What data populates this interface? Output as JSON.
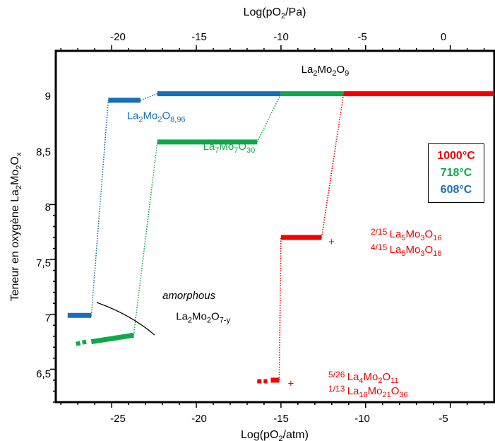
{
  "chart_data": {
    "type": "line",
    "xlabel_bottom": "Log(pO2/atm)",
    "xlabel_top": "Log(pO2/Pa)",
    "ylabel": "Teneur en oxygène La2Mo2Ox",
    "xlim": [
      -28.3,
      -2.4
    ],
    "ylim": [
      6.2,
      9.4
    ],
    "top_xlim": [
      -23.3,
      2.6
    ],
    "x_ticks": [
      "-25",
      "-20",
      "-15",
      "-10",
      "-5"
    ],
    "top_ticks": [
      "-20",
      "-15",
      "-10",
      "-5",
      "0"
    ],
    "y_ticks": [
      "6,5",
      "7",
      "7,5",
      "8",
      "8,5",
      "9"
    ],
    "legend": [
      {
        "label": "1000°C",
        "color": "#f20000"
      },
      {
        "label": "718°C",
        "color": "#12a84a"
      },
      {
        "label": "608°C",
        "color": "#1670b8"
      }
    ],
    "series": [
      {
        "name": "608°C",
        "color": "#1670b8",
        "segments": [
          {
            "x": [
              -27.6,
              -26.2
            ],
            "y": [
              6.99,
              6.99
            ],
            "style": "solid"
          },
          {
            "x": [
              -26.2,
              -25.2
            ],
            "y": [
              6.99,
              8.95
            ],
            "style": "dotted"
          },
          {
            "x": [
              -25.2,
              -23.3
            ],
            "y": [
              8.95,
              8.95
            ],
            "style": "solid"
          },
          {
            "x": [
              -23.3,
              -22.3
            ],
            "y": [
              8.95,
              9.01
            ],
            "style": "dotted"
          },
          {
            "x": [
              -22.3,
              -15.0
            ],
            "y": [
              9.01,
              9.01
            ],
            "style": "solid"
          }
        ]
      },
      {
        "name": "718°C",
        "color": "#12a84a",
        "segments": [
          {
            "x": [
              -27.1,
              -26.5
            ],
            "y": [
              6.73,
              6.75
            ],
            "style": "dashed"
          },
          {
            "x": [
              -26.2,
              -23.7
            ],
            "y": [
              6.75,
              6.81
            ],
            "style": "solid"
          },
          {
            "x": [
              -23.7,
              -22.3
            ],
            "y": [
              6.81,
              8.57
            ],
            "style": "dotted"
          },
          {
            "x": [
              -22.3,
              -16.4
            ],
            "y": [
              8.57,
              8.57
            ],
            "style": "solid"
          },
          {
            "x": [
              -16.4,
              -15.0
            ],
            "y": [
              8.57,
              9.01
            ],
            "style": "dotted"
          },
          {
            "x": [
              -15.0,
              -11.3
            ],
            "y": [
              9.01,
              9.01
            ],
            "style": "solid"
          }
        ]
      },
      {
        "name": "1000°C",
        "color": "#f20000",
        "segments": [
          {
            "x": [
              -16.4,
              -15.8
            ],
            "y": [
              6.39,
              6.39
            ],
            "style": "dashed"
          },
          {
            "x": [
              -15.6,
              -15.1
            ],
            "y": [
              6.4,
              6.4
            ],
            "style": "solid"
          },
          {
            "x": [
              -15.1,
              -15.0
            ],
            "y": [
              6.4,
              7.7
            ],
            "style": "dotted"
          },
          {
            "x": [
              -15.0,
              -12.6
            ],
            "y": [
              7.7,
              7.7
            ],
            "style": "solid"
          },
          {
            "x": [
              -12.6,
              -11.3
            ],
            "y": [
              7.7,
              9.01
            ],
            "style": "dotted"
          },
          {
            "x": [
              -11.3,
              -2.4
            ],
            "y": [
              9.01,
              9.01
            ],
            "style": "solid"
          }
        ]
      }
    ],
    "annotations": [
      {
        "id": "la2mo2o9",
        "text": "La2Mo2O9",
        "x": -13.8,
        "y": 9.2,
        "color": "#000000"
      },
      {
        "id": "la2mo2o896",
        "text": "La2Mo2O8,96",
        "x": -24.1,
        "y": 8.78,
        "color": "#1670b8"
      },
      {
        "id": "la7mo7o30",
        "text": "La7Mo7O30",
        "x": -19.6,
        "y": 8.5,
        "color": "#12a84a"
      },
      {
        "id": "amorphous",
        "text": "amorphous",
        "x": -22.0,
        "y": 7.14,
        "color": "#000000"
      },
      {
        "id": "la2mo2o7y",
        "text": "La2Mo2O7-y",
        "x": -21.2,
        "y": 6.95,
        "color": "#000000"
      },
      {
        "id": "phase-7-7-a",
        "text": "2/15 La5Mo3O16",
        "x": -9.7,
        "y": 7.7,
        "color": "#f20000"
      },
      {
        "id": "phase-7-7-plus",
        "text": "+",
        "x": -12.2,
        "y": 7.63,
        "color": "#f20000"
      },
      {
        "id": "phase-7-7-b",
        "text": "4/15 La5Mo3O16",
        "x": -9.7,
        "y": 7.56,
        "color": "#f20000"
      },
      {
        "id": "phase-6-4-a",
        "text": "5/26 La4Mo2O11",
        "x": -12.2,
        "y": 6.4,
        "color": "#f20000"
      },
      {
        "id": "phase-6-4-plus",
        "text": "+",
        "x": -14.6,
        "y": 6.34,
        "color": "#f20000"
      },
      {
        "id": "phase-6-4-b",
        "text": "1/13 La16Mo21O36",
        "x": -12.2,
        "y": 6.27,
        "color": "#f20000"
      }
    ]
  }
}
